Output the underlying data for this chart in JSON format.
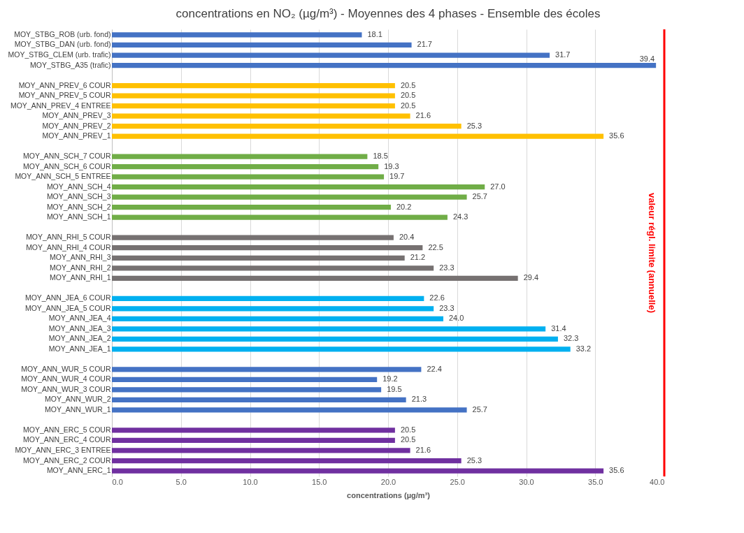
{
  "chart_data": {
    "type": "bar",
    "orientation": "horizontal",
    "title": "concentrations en NO₂ (µg/m³) - Moyennes des 4 phases - Ensemble des écoles",
    "xlabel": "concentrations (µg/m³)",
    "categories": [
      "MOY_STBG_ROB (urb. fond)",
      "MOY_STBG_DAN (urb. fond)",
      "MOY_STBG_CLEM (urb. trafic)",
      "MOY_STBG_A35 (trafic)",
      null,
      "MOY_ANN_PREV_6 COUR",
      "MOY_ANN_PREV_5 COUR",
      "MOY_ANN_PREV_4 ENTREE",
      "MOY_ANN_PREV_3",
      "MOY_ANN_PREV_2",
      "MOY_ANN_PREV_1",
      null,
      "MOY_ANN_SCH_7 COUR",
      "MOY_ANN_SCH_6 COUR",
      "MOY_ANN_SCH_5 ENTREE",
      "MOY_ANN_SCH_4",
      "MOY_ANN_SCH_3",
      "MOY_ANN_SCH_2",
      "MOY_ANN_SCH_1",
      null,
      "MOY_ANN_RHI_5 COUR",
      "MOY_ANN_RHI_4 COUR",
      "MOY_ANN_RHI_3",
      "MOY_ANN_RHI_2",
      "MOY_ANN_RHI_1",
      null,
      "MOY_ANN_JEA_6 COUR",
      "MOY_ANN_JEA_5 COUR",
      "MOY_ANN_JEA_4",
      "MOY_ANN_JEA_3",
      "MOY_ANN_JEA_2",
      "MOY_ANN_JEA_1",
      null,
      "MOY_ANN_WUR_5 COUR",
      "MOY_ANN_WUR_4 COUR",
      "MOY_ANN_WUR_3 COUR",
      "MOY_ANN_WUR_2",
      "MOY_ANN_WUR_1",
      null,
      "MOY_ANN_ERC_5 COUR",
      "MOY_ANN_ERC_4 COUR",
      "MOY_ANN_ERC_3 ENTREE",
      "MOY_ANN_ERC_2 COUR",
      "MOY_ANN_ERC_1"
    ],
    "values": [
      18.1,
      21.7,
      31.7,
      39.4,
      null,
      20.5,
      20.5,
      20.5,
      21.6,
      25.3,
      35.6,
      null,
      18.5,
      19.3,
      19.7,
      27.0,
      25.7,
      20.2,
      24.3,
      null,
      20.4,
      22.5,
      21.2,
      23.3,
      29.4,
      null,
      22.6,
      23.3,
      24.0,
      31.4,
      32.3,
      33.2,
      null,
      22.4,
      19.2,
      19.5,
      21.3,
      25.7,
      null,
      20.5,
      20.5,
      21.6,
      25.3,
      35.6
    ],
    "value_labels": [
      "18.1",
      "21.7",
      "31.7",
      "39.4",
      null,
      "20.5",
      "20.5",
      "20.5",
      "21.6",
      "25.3",
      "35.6",
      null,
      "18.5",
      "19.3",
      "19.7",
      "27.0",
      "25.7",
      "20.2",
      "24.3",
      null,
      "20.4",
      "22.5",
      "21.2",
      "23.3",
      "29.4",
      null,
      "22.6",
      "23.3",
      "24.0",
      "31.4",
      "32.3",
      "33.2",
      null,
      "22.4",
      "19.2",
      "19.5",
      "21.3",
      "25.7",
      null,
      "20.5",
      "20.5",
      "21.6",
      "25.3",
      "35.6"
    ],
    "colors": [
      "#4472c4",
      "#4472c4",
      "#4472c4",
      "#4472c4",
      null,
      "#ffc000",
      "#ffc000",
      "#ffc000",
      "#ffc000",
      "#ffc000",
      "#ffc000",
      null,
      "#70ad47",
      "#70ad47",
      "#70ad47",
      "#70ad47",
      "#70ad47",
      "#70ad47",
      "#70ad47",
      null,
      "#767171",
      "#767171",
      "#767171",
      "#767171",
      "#767171",
      null,
      "#00b0f0",
      "#00b0f0",
      "#00b0f0",
      "#00b0f0",
      "#00b0f0",
      "#00b0f0",
      null,
      "#4472c4",
      "#4472c4",
      "#4472c4",
      "#4472c4",
      "#4472c4",
      null,
      "#7030a0",
      "#7030a0",
      "#7030a0",
      "#7030a0",
      "#7030a0"
    ],
    "xlim": [
      0,
      40
    ],
    "xticks": [
      {
        "value": 0,
        "label": "0.0"
      },
      {
        "value": 5,
        "label": "5.0"
      },
      {
        "value": 10,
        "label": "10.0"
      },
      {
        "value": 15,
        "label": "15.0"
      },
      {
        "value": 20,
        "label": "20.0"
      },
      {
        "value": 25,
        "label": "25.0"
      },
      {
        "value": 30,
        "label": "30.0"
      },
      {
        "value": 35,
        "label": "35.0"
      },
      {
        "value": 40,
        "label": "40.0"
      }
    ],
    "grid": "x",
    "ref_lines": [
      {
        "axis": "x",
        "value": 40,
        "label": "valeur régl. limite (annuelle)",
        "color": "#ff0000"
      }
    ]
  }
}
